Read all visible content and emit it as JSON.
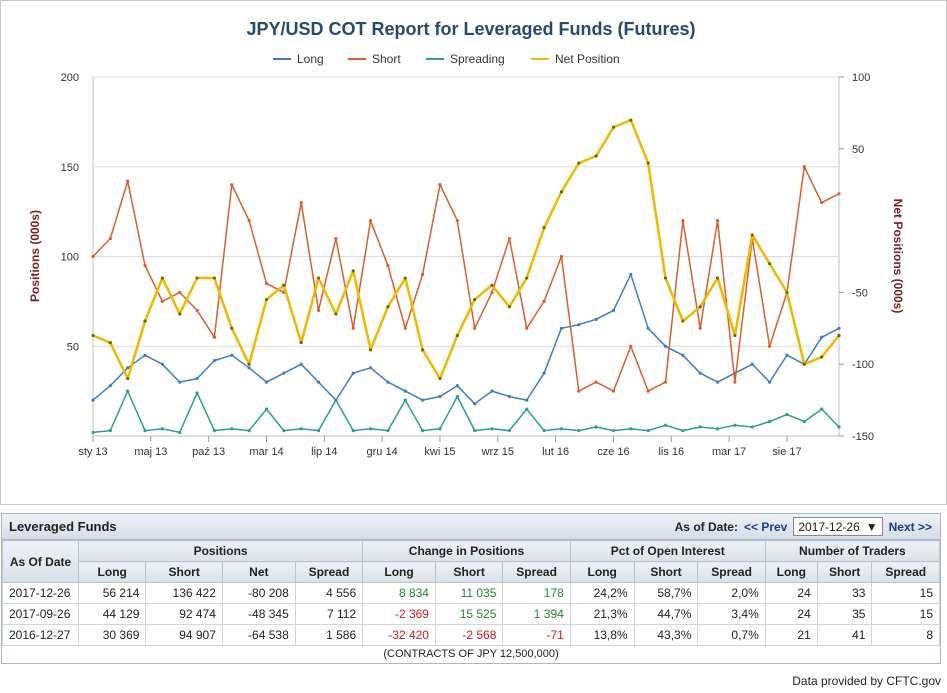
{
  "chart_data": {
    "type": "line",
    "title": "JPY/USD COT Report for Leveraged Funds (Futures)",
    "ylabel_left": "Positions (000s)",
    "ylabel_right": "Net Positions (000s)",
    "ylim_left": [
      0,
      200
    ],
    "ylim_right": [
      -150,
      100
    ],
    "yticks_left": [
      "50",
      "100",
      "150",
      "200"
    ],
    "yticks_right": [
      "-150",
      "-100",
      "-50",
      "50",
      "100"
    ],
    "xticks": [
      "sty 13",
      "maj 13",
      "paź 13",
      "mar 14",
      "lip 14",
      "gru 14",
      "kwi 15",
      "wrz 15",
      "lut 16",
      "cze 16",
      "lis 16",
      "mar 17",
      "sie 17"
    ],
    "x_range": [
      0,
      12.9
    ],
    "grid": true,
    "legend_position": "top-center",
    "series": [
      {
        "name": "Long",
        "color": "#3e7fc1",
        "axis": "left",
        "x": [
          0,
          0.3,
          0.6,
          0.9,
          1.2,
          1.5,
          1.8,
          2.1,
          2.4,
          2.7,
          3.0,
          3.3,
          3.6,
          3.9,
          4.2,
          4.5,
          4.8,
          5.1,
          5.4,
          5.7,
          6.0,
          6.3,
          6.6,
          6.9,
          7.2,
          7.5,
          7.8,
          8.1,
          8.4,
          8.7,
          9.0,
          9.3,
          9.6,
          9.9,
          10.2,
          10.5,
          10.8,
          11.1,
          11.4,
          11.7,
          12.0,
          12.3,
          12.6,
          12.9
        ],
        "values": [
          20,
          28,
          38,
          45,
          40,
          30,
          32,
          42,
          45,
          38,
          30,
          35,
          40,
          30,
          20,
          35,
          38,
          30,
          25,
          20,
          22,
          28,
          18,
          25,
          22,
          20,
          35,
          60,
          62,
          65,
          70,
          90,
          60,
          50,
          45,
          35,
          30,
          35,
          40,
          30,
          45,
          40,
          55,
          60
        ]
      },
      {
        "name": "Short",
        "color": "#d95f2e",
        "axis": "left",
        "x": [
          0,
          0.3,
          0.6,
          0.9,
          1.2,
          1.5,
          1.8,
          2.1,
          2.4,
          2.7,
          3.0,
          3.3,
          3.6,
          3.9,
          4.2,
          4.5,
          4.8,
          5.1,
          5.4,
          5.7,
          6.0,
          6.3,
          6.6,
          6.9,
          7.2,
          7.5,
          7.8,
          8.1,
          8.4,
          8.7,
          9.0,
          9.3,
          9.6,
          9.9,
          10.2,
          10.5,
          10.8,
          11.1,
          11.4,
          11.7,
          12.0,
          12.3,
          12.6,
          12.9
        ],
        "values": [
          100,
          110,
          142,
          95,
          75,
          80,
          70,
          55,
          140,
          120,
          85,
          80,
          130,
          70,
          110,
          60,
          120,
          95,
          60,
          90,
          140,
          120,
          60,
          80,
          110,
          60,
          75,
          100,
          25,
          30,
          25,
          50,
          25,
          30,
          120,
          60,
          120,
          30,
          110,
          50,
          80,
          150,
          130,
          135
        ]
      },
      {
        "name": "Spreading",
        "color": "#2aa090",
        "axis": "left",
        "x": [
          0,
          0.3,
          0.6,
          0.9,
          1.2,
          1.5,
          1.8,
          2.1,
          2.4,
          2.7,
          3.0,
          3.3,
          3.6,
          3.9,
          4.2,
          4.5,
          4.8,
          5.1,
          5.4,
          5.7,
          6.0,
          6.3,
          6.6,
          6.9,
          7.2,
          7.5,
          7.8,
          8.1,
          8.4,
          8.7,
          9.0,
          9.3,
          9.6,
          9.9,
          10.2,
          10.5,
          10.8,
          11.1,
          11.4,
          11.7,
          12.0,
          12.3,
          12.6,
          12.9
        ],
        "values": [
          2,
          3,
          25,
          3,
          4,
          2,
          24,
          3,
          4,
          3,
          15,
          3,
          4,
          3,
          20,
          3,
          4,
          3,
          20,
          3,
          4,
          22,
          3,
          4,
          3,
          15,
          3,
          4,
          3,
          5,
          3,
          4,
          3,
          6,
          3,
          5,
          4,
          6,
          5,
          8,
          12,
          8,
          15,
          5
        ]
      },
      {
        "name": "Net Position",
        "color": "#f0b800",
        "axis": "right",
        "x": [
          0,
          0.3,
          0.6,
          0.9,
          1.2,
          1.5,
          1.8,
          2.1,
          2.4,
          2.7,
          3.0,
          3.3,
          3.6,
          3.9,
          4.2,
          4.5,
          4.8,
          5.1,
          5.4,
          5.7,
          6.0,
          6.3,
          6.6,
          6.9,
          7.2,
          7.5,
          7.8,
          8.1,
          8.4,
          8.7,
          9.0,
          9.3,
          9.6,
          9.9,
          10.2,
          10.5,
          10.8,
          11.1,
          11.4,
          11.7,
          12.0,
          12.3,
          12.6,
          12.9
        ],
        "values": [
          -80,
          -85,
          -110,
          -70,
          -40,
          -65,
          -40,
          -40,
          -75,
          -100,
          -55,
          -45,
          -85,
          -40,
          -65,
          -35,
          -90,
          -60,
          -40,
          -90,
          -110,
          -80,
          -55,
          -45,
          -60,
          -40,
          -5,
          20,
          40,
          45,
          65,
          70,
          40,
          -40,
          -70,
          -60,
          -40,
          -80,
          -10,
          -30,
          -50,
          -100,
          -95,
          -80
        ]
      }
    ]
  },
  "legend": [
    {
      "label": "Long",
      "color": "#3e7fc1"
    },
    {
      "label": "Short",
      "color": "#d95f2e"
    },
    {
      "label": "Spreading",
      "color": "#2aa090"
    },
    {
      "label": "Net Position",
      "color": "#f0b800"
    }
  ],
  "table": {
    "title": "Leveraged Funds",
    "as_of_label": "As of Date:",
    "prev_label": "<< Prev",
    "next_label": "Next >>",
    "selected_date": "2017-12-26",
    "headers": {
      "as_of_date": "As Of Date",
      "positions": "Positions",
      "change": "Change in Positions",
      "pct": "Pct of Open Interest",
      "traders": "Number of Traders",
      "long": "Long",
      "short": "Short",
      "net": "Net",
      "spread": "Spread"
    },
    "rows": [
      {
        "date": "2017-12-26",
        "pos_long": "56 214",
        "pos_short": "136 422",
        "pos_net": "-80 208",
        "pos_spread": "4 556",
        "chg_long": "8 834",
        "chg_short": "11 035",
        "chg_spread": "178",
        "pct_long": "24,2%",
        "pct_short": "58,7%",
        "pct_spread": "2,0%",
        "tr_long": "24",
        "tr_short": "33",
        "tr_spread": "15"
      },
      {
        "date": "2017-09-26",
        "pos_long": "44 129",
        "pos_short": "92 474",
        "pos_net": "-48 345",
        "pos_spread": "7 112",
        "chg_long": "-2 369",
        "chg_short": "15 525",
        "chg_spread": "1 394",
        "pct_long": "21,3%",
        "pct_short": "44,7%",
        "pct_spread": "3,4%",
        "tr_long": "24",
        "tr_short": "35",
        "tr_spread": "15"
      },
      {
        "date": "2016-12-27",
        "pos_long": "30 369",
        "pos_short": "94 907",
        "pos_net": "-64 538",
        "pos_spread": "1 586",
        "chg_long": "-32 420",
        "chg_short": "-2 568",
        "chg_spread": "-71",
        "pct_long": "13,8%",
        "pct_short": "43,3%",
        "pct_spread": "0,7%",
        "tr_long": "21",
        "tr_short": "41",
        "tr_spread": "8"
      }
    ],
    "footnote": "(CONTRACTS OF JPY 12,500,000)"
  },
  "credit": "Data provided by CFTC.gov"
}
